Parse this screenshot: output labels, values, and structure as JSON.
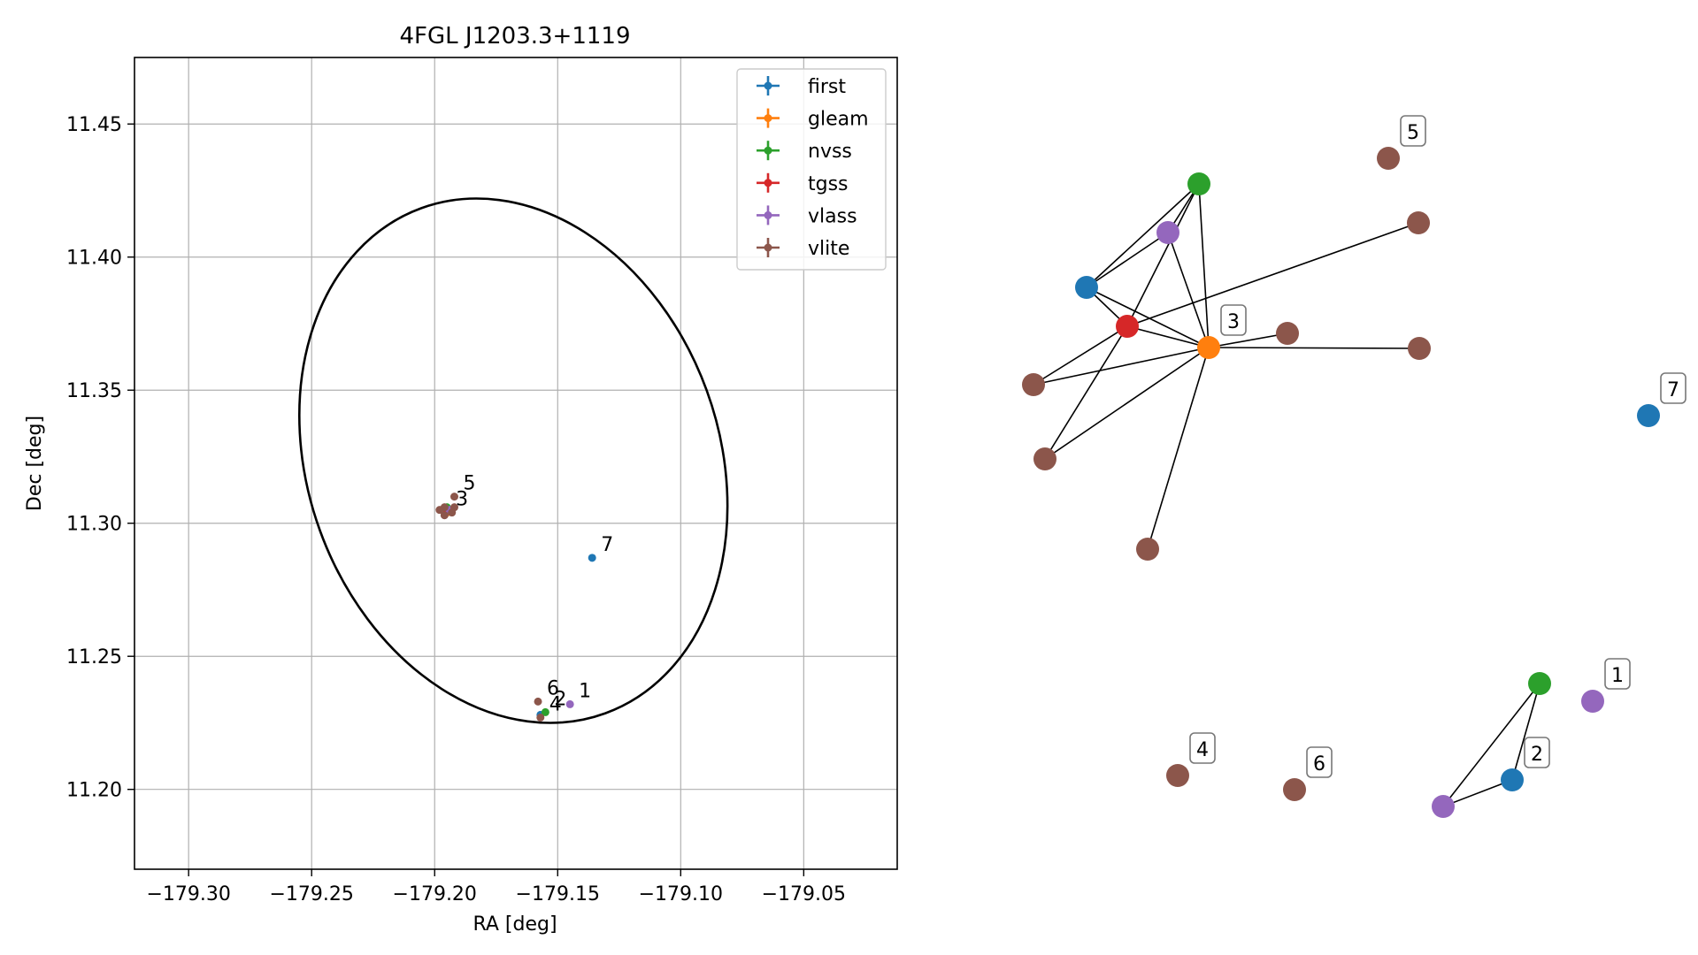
{
  "chart_data": [
    {
      "type": "scatter",
      "title": "4FGL J1203.3+1119",
      "xlabel": "RA [deg]",
      "ylabel": "Dec [deg]",
      "xlim": [
        -179.322,
        -179.012
      ],
      "ylim": [
        11.17,
        11.475
      ],
      "grid": true,
      "x_ticks": [
        -179.3,
        -179.25,
        -179.2,
        -179.15,
        -179.1,
        -179.05
      ],
      "x_tick_labels": [
        "−179.30",
        "−179.25",
        "−179.20",
        "−179.15",
        "−179.10",
        "−179.05"
      ],
      "y_ticks": [
        11.2,
        11.25,
        11.3,
        11.35,
        11.4,
        11.45
      ],
      "y_tick_labels": [
        "11.20",
        "11.25",
        "11.30",
        "11.35",
        "11.40",
        "11.45"
      ],
      "legend_position": "top-right",
      "ellipse": {
        "center": [
          -179.1805,
          11.323
        ],
        "ra_extent": [
          -179.255,
          -179.081
        ],
        "dec_extent": [
          11.225,
          11.422
        ],
        "tilt_deg": -20
      },
      "series": [
        {
          "name": "first",
          "color": "#1f77b4",
          "points": [
            [
              -179.136,
              11.287
            ],
            [
              -179.157,
              11.228
            ]
          ]
        },
        {
          "name": "gleam",
          "color": "#ff7f0e",
          "points": [
            [
              -179.195,
              11.304
            ]
          ]
        },
        {
          "name": "nvss",
          "color": "#2ca02c",
          "points": [
            [
              -179.155,
              11.229
            ],
            [
              -179.195,
              11.306
            ]
          ]
        },
        {
          "name": "tgss",
          "color": "#d62728",
          "points": [
            [
              -179.195,
              11.305
            ]
          ]
        },
        {
          "name": "vlass",
          "color": "#9467bd",
          "points": [
            [
              -179.145,
              11.232
            ],
            [
              -179.194,
              11.305
            ]
          ]
        },
        {
          "name": "vlite",
          "color": "#8c564b",
          "points": [
            [
              -179.192,
              11.31
            ],
            [
              -179.196,
              11.306
            ],
            [
              -179.192,
              11.306
            ],
            [
              -179.158,
              11.233
            ],
            [
              -179.157,
              11.227
            ],
            [
              -179.198,
              11.305
            ],
            [
              -179.193,
              11.304
            ],
            [
              -179.196,
              11.303
            ]
          ]
        }
      ],
      "annotations": [
        {
          "text": "1",
          "x": -179.145,
          "y": 11.232
        },
        {
          "text": "2",
          "x": -179.155,
          "y": 11.229
        },
        {
          "text": "3",
          "x": -179.195,
          "y": 11.304
        },
        {
          "text": "4",
          "x": -179.157,
          "y": 11.227
        },
        {
          "text": "5",
          "x": -179.192,
          "y": 11.31
        },
        {
          "text": "6",
          "x": -179.158,
          "y": 11.233
        },
        {
          "text": "7",
          "x": -179.136,
          "y": 11.287
        }
      ]
    },
    {
      "type": "network",
      "nodes": [
        {
          "id": "n3",
          "survey": "gleam",
          "color": "#ff7f0e",
          "label": "3"
        },
        {
          "id": "nTgss",
          "survey": "tgss",
          "color": "#d62728",
          "label": ""
        },
        {
          "id": "nFirst",
          "survey": "first",
          "color": "#1f77b4",
          "label": ""
        },
        {
          "id": "nVlass",
          "survey": "vlass",
          "color": "#9467bd",
          "label": ""
        },
        {
          "id": "nNvss",
          "survey": "nvss",
          "color": "#2ca02c",
          "label": ""
        },
        {
          "id": "nV1",
          "survey": "vlite",
          "color": "#8c564b",
          "label": ""
        },
        {
          "id": "nV2",
          "survey": "vlite",
          "color": "#8c564b",
          "label": ""
        },
        {
          "id": "nV3",
          "survey": "vlite",
          "color": "#8c564b",
          "label": ""
        },
        {
          "id": "nV4",
          "survey": "vlite",
          "color": "#8c564b",
          "label": ""
        },
        {
          "id": "nV5",
          "survey": "vlite",
          "color": "#8c564b",
          "label": ""
        },
        {
          "id": "nV6",
          "survey": "vlite",
          "color": "#8c564b",
          "label": ""
        },
        {
          "id": "n5",
          "survey": "vlite",
          "color": "#8c564b",
          "label": "5"
        },
        {
          "id": "n7",
          "survey": "first",
          "color": "#1f77b4",
          "label": "7"
        },
        {
          "id": "n1",
          "survey": "vlass",
          "color": "#9467bd",
          "label": "1"
        },
        {
          "id": "nNvss2",
          "survey": "nvss",
          "color": "#2ca02c",
          "label": ""
        },
        {
          "id": "n2",
          "survey": "first",
          "color": "#1f77b4",
          "label": "2"
        },
        {
          "id": "nVlass2",
          "survey": "vlass",
          "color": "#9467bd",
          "label": ""
        },
        {
          "id": "n4",
          "survey": "vlite",
          "color": "#8c564b",
          "label": "4"
        },
        {
          "id": "n6",
          "survey": "vlite",
          "color": "#8c564b",
          "label": "6"
        }
      ],
      "edges": [
        [
          "nFirst",
          "nNvss"
        ],
        [
          "nFirst",
          "nVlass"
        ],
        [
          "nFirst",
          "n3"
        ],
        [
          "nFirst",
          "nTgss"
        ],
        [
          "nVlass",
          "nNvss"
        ],
        [
          "nVlass",
          "n3"
        ],
        [
          "nNvss",
          "n3"
        ],
        [
          "nNvss",
          "nTgss"
        ],
        [
          "nTgss",
          "n3"
        ],
        [
          "nTgss",
          "nV1"
        ],
        [
          "nTgss",
          "nV4"
        ],
        [
          "nTgss",
          "nV5"
        ],
        [
          "n3",
          "nV1"
        ],
        [
          "n3",
          "nV2"
        ],
        [
          "n3",
          "nV3"
        ],
        [
          "n3",
          "nV4"
        ],
        [
          "n3",
          "nV6"
        ],
        [
          "nNvss2",
          "n2"
        ],
        [
          "nNvss2",
          "nVlass2"
        ],
        [
          "n2",
          "nVlass2"
        ]
      ]
    }
  ]
}
